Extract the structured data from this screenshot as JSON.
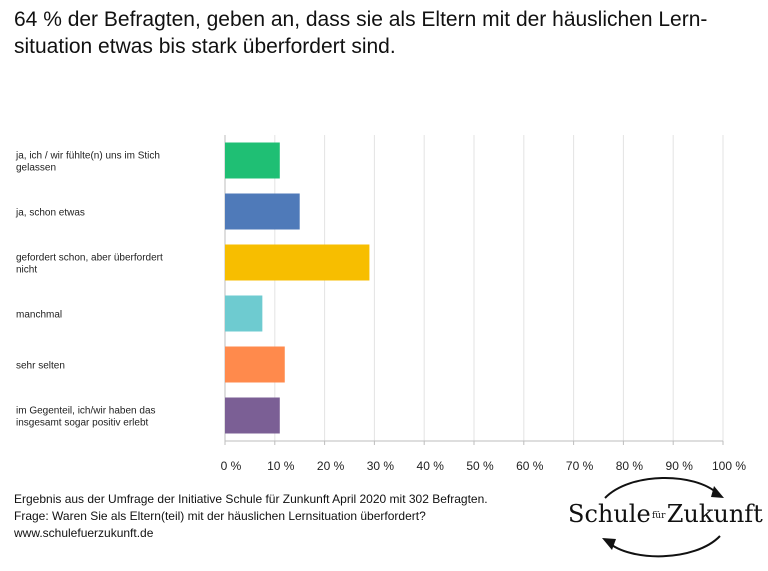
{
  "headline": "64 % der Befragten, geben an, dass sie als Eltern mit der häuslichen Lern-situation etwas bis stark überfordert sind.",
  "chart_data": {
    "type": "bar",
    "orientation": "horizontal",
    "categories": [
      [
        "ja, ich / wir fühlte(n) uns im Stich",
        "gelassen"
      ],
      [
        "ja, schon etwas"
      ],
      [
        "gefordert schon, aber überfordert",
        "nicht"
      ],
      [
        "manchmal"
      ],
      [
        "sehr selten"
      ],
      [
        "im Gegenteil, ich/wir haben das",
        "insgesamt sogar positiv erlebt"
      ]
    ],
    "values": [
      11,
      15,
      29,
      7.5,
      12,
      11
    ],
    "colors": [
      "#1fbf74",
      "#4f7ab9",
      "#f7be00",
      "#6ecbd0",
      "#ff8a4c",
      "#7b5f95"
    ],
    "xlim": [
      0,
      100
    ],
    "ticks": [
      "0 %",
      "10 %",
      "20 %",
      "30 %",
      "40 %",
      "50 %",
      "60 %",
      "70 %",
      "80 %",
      "90 %",
      "100 %"
    ],
    "grid": true
  },
  "footer": {
    "line1": "Ergebnis aus der Umfrage der Initiative Schule für Zunkunft  April 2020 mit 302 Befragten.",
    "line2": "Frage: Waren Sie als Eltern(teil) mit der häuslichen Lernsituation überfordert?",
    "line3": "www.schulefuerzukunft.de"
  },
  "logo": {
    "part1": "Schule",
    "part2": "für",
    "part3": "Zukunft"
  }
}
